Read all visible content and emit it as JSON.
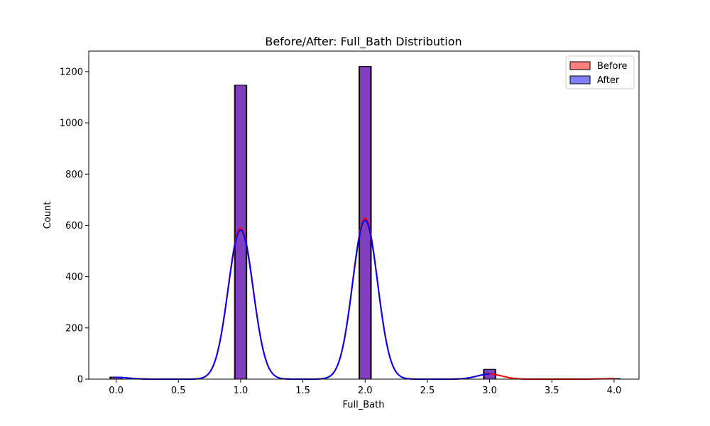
{
  "chart_data": {
    "type": "bar",
    "title": "Before/After: Full_Bath Distribution",
    "xlabel": "Full_Bath",
    "ylabel": "Count",
    "xlim": [
      -0.22,
      4.2
    ],
    "ylim": [
      0,
      1280
    ],
    "xticks": [
      "0.0",
      "0.5",
      "1.0",
      "1.5",
      "2.0",
      "2.5",
      "3.0",
      "3.5",
      "4.0"
    ],
    "xtick_values": [
      0,
      0.5,
      1.0,
      1.5,
      2.0,
      2.5,
      3.0,
      3.5,
      4.0
    ],
    "yticks": [
      "0",
      "200",
      "400",
      "600",
      "800",
      "1000",
      "1200"
    ],
    "ytick_values": [
      0,
      200,
      400,
      600,
      800,
      1000,
      1200
    ],
    "grid": false,
    "legend_position": "top-right",
    "series": [
      {
        "name": "Before",
        "color": "#ff0000",
        "bar_width": 0.1,
        "bars": [
          {
            "x": 0.0,
            "y": 8
          },
          {
            "x": 1.0,
            "y": 1147
          },
          {
            "x": 2.0,
            "y": 1220
          },
          {
            "x": 3.0,
            "y": 38
          },
          {
            "x": 4.0,
            "y": 2
          }
        ],
        "kde": [
          {
            "x": 0.0,
            "y": 7
          },
          {
            "x": 1.0,
            "y": 590
          },
          {
            "x": 2.0,
            "y": 628
          },
          {
            "x": 3.0,
            "y": 20
          },
          {
            "x": 4.0,
            "y": 2
          }
        ]
      },
      {
        "name": "After",
        "color": "#0000ff",
        "bar_width": 0.0875,
        "bars": [
          {
            "x": 0.0,
            "y": 8
          },
          {
            "x": 1.0,
            "y": 1147
          },
          {
            "x": 2.0,
            "y": 1220
          },
          {
            "x": 3.0,
            "y": 38
          }
        ],
        "kde": [
          {
            "x": 0.0,
            "y": 7
          },
          {
            "x": 1.0,
            "y": 582
          },
          {
            "x": 2.0,
            "y": 620
          },
          {
            "x": 3.0,
            "y": 20
          }
        ]
      }
    ]
  }
}
